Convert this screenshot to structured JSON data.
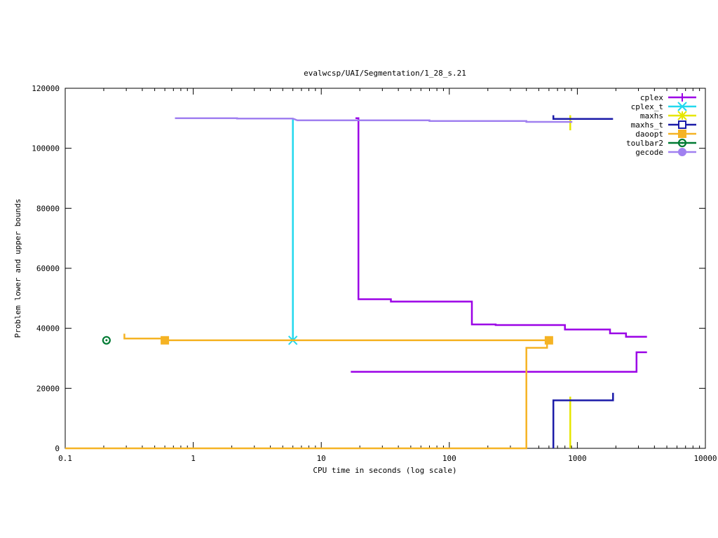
{
  "chart_data": {
    "type": "line",
    "title": "evalwcsp/UAI/Segmentation/1_28_s.21",
    "xlabel": "CPU time in seconds (log scale)",
    "ylabel": "Problem lower and upper bounds",
    "xscale": "log",
    "xlim": [
      0.1,
      10000
    ],
    "ylim": [
      0,
      120000
    ],
    "xticks": [
      0.1,
      1,
      10,
      100,
      1000,
      10000
    ],
    "xtick_labels": [
      "0.1",
      "1",
      "10",
      "100",
      "1000",
      "10000"
    ],
    "yticks": [
      0,
      20000,
      40000,
      60000,
      80000,
      100000,
      120000
    ],
    "ytick_labels": [
      "0",
      "20000",
      "40000",
      "60000",
      "80000",
      "100000",
      "120000"
    ],
    "legend_position": "top-right",
    "grid": false,
    "series": [
      {
        "name": "cplex",
        "color": "#9b00e6",
        "marker": "plus",
        "lines": [
          [
            [
              18.5,
              110000
            ],
            [
              19.5,
              110000
            ],
            [
              19.5,
              49700
            ],
            [
              35,
              49700
            ],
            [
              35,
              48900
            ],
            [
              150,
              48900
            ],
            [
              150,
              41300
            ],
            [
              230,
              41300
            ],
            [
              230,
              41100
            ],
            [
              800,
              41100
            ],
            [
              800,
              39600
            ],
            [
              1800,
              39600
            ],
            [
              1800,
              38300
            ],
            [
              2400,
              38300
            ],
            [
              2400,
              37200
            ],
            [
              3500,
              37200
            ]
          ],
          [
            [
              17,
              25500
            ],
            [
              2900,
              25500
            ],
            [
              2900,
              32000
            ],
            [
              3500,
              32000
            ]
          ]
        ],
        "markers": []
      },
      {
        "name": "cplex_t",
        "color": "#22d8ee",
        "marker": "x",
        "lines": [
          [
            [
              6,
              110000
            ],
            [
              6,
              36000
            ]
          ]
        ],
        "markers": [
          [
            6,
            36000
          ]
        ]
      },
      {
        "name": "maxhs",
        "color": "#e6e600",
        "marker": "star",
        "lines": [
          [
            [
              880,
              0
            ],
            [
              880,
              17200
            ]
          ],
          [
            [
              880,
              106000
            ],
            [
              880,
              111000
            ]
          ]
        ],
        "markers": []
      },
      {
        "name": "maxhs_t",
        "color": "#1a1aa8",
        "marker": "open-square",
        "lines": [
          [
            [
              650,
              0
            ],
            [
              650,
              16000
            ],
            [
              1900,
              16000
            ],
            [
              1900,
              18500
            ]
          ],
          [
            [
              650,
              111000
            ],
            [
              650,
              109800
            ],
            [
              1900,
              109800
            ]
          ]
        ],
        "markers": []
      },
      {
        "name": "daoopt",
        "color": "#f5b324",
        "marker": "filled-square",
        "lines": [
          [
            [
              0.1,
              0
            ],
            [
              400,
              0
            ],
            [
              400,
              33500
            ],
            [
              580,
              33500
            ],
            [
              580,
              36000
            ],
            [
              600,
              36000
            ]
          ],
          [
            [
              0.29,
              38200
            ],
            [
              0.29,
              36600
            ],
            [
              0.6,
              36600
            ],
            [
              0.6,
              36000
            ],
            [
              600,
              36000
            ]
          ]
        ],
        "markers": [
          [
            0.6,
            36000
          ],
          [
            600,
            36000
          ]
        ]
      },
      {
        "name": "toulbar2",
        "color": "#007a33",
        "marker": "ring",
        "lines": [],
        "markers": [
          [
            0.21,
            36000
          ]
        ]
      },
      {
        "name": "gecode",
        "color": "#a080f0",
        "marker": "filled-circle",
        "lines": [
          [
            [
              0.72,
              110000
            ],
            [
              2.2,
              110000
            ],
            [
              2.2,
              109900
            ],
            [
              6,
              109900
            ],
            [
              6.5,
              109300
            ],
            [
              70,
              109300
            ],
            [
              70,
              109100
            ],
            [
              400,
              109100
            ],
            [
              400,
              108800
            ],
            [
              900,
              108800
            ],
            [
              900,
              108500
            ]
          ]
        ],
        "markers": []
      }
    ]
  }
}
